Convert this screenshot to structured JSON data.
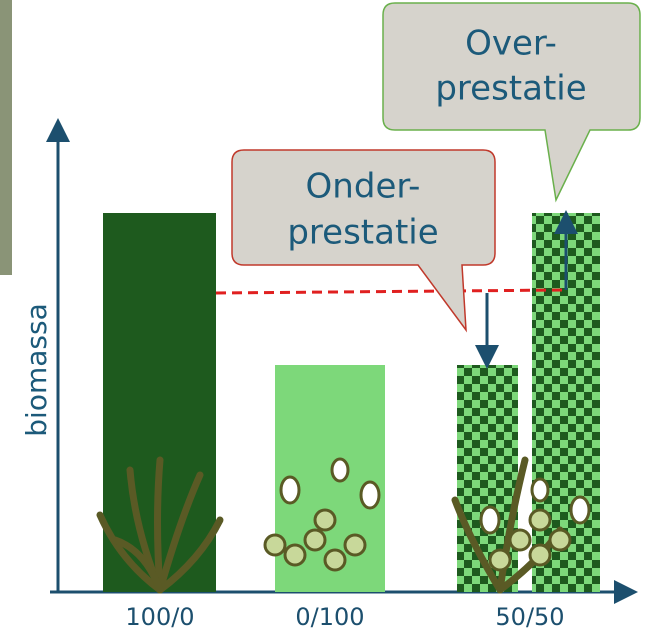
{
  "y_axis_label": "biomassa",
  "categories": [
    "100/0",
    "0/100",
    "50/50"
  ],
  "callouts": [
    {
      "lines": [
        "Onder-",
        "prestatie"
      ]
    },
    {
      "lines": [
        "Over-",
        "prestatie"
      ]
    }
  ]
}
